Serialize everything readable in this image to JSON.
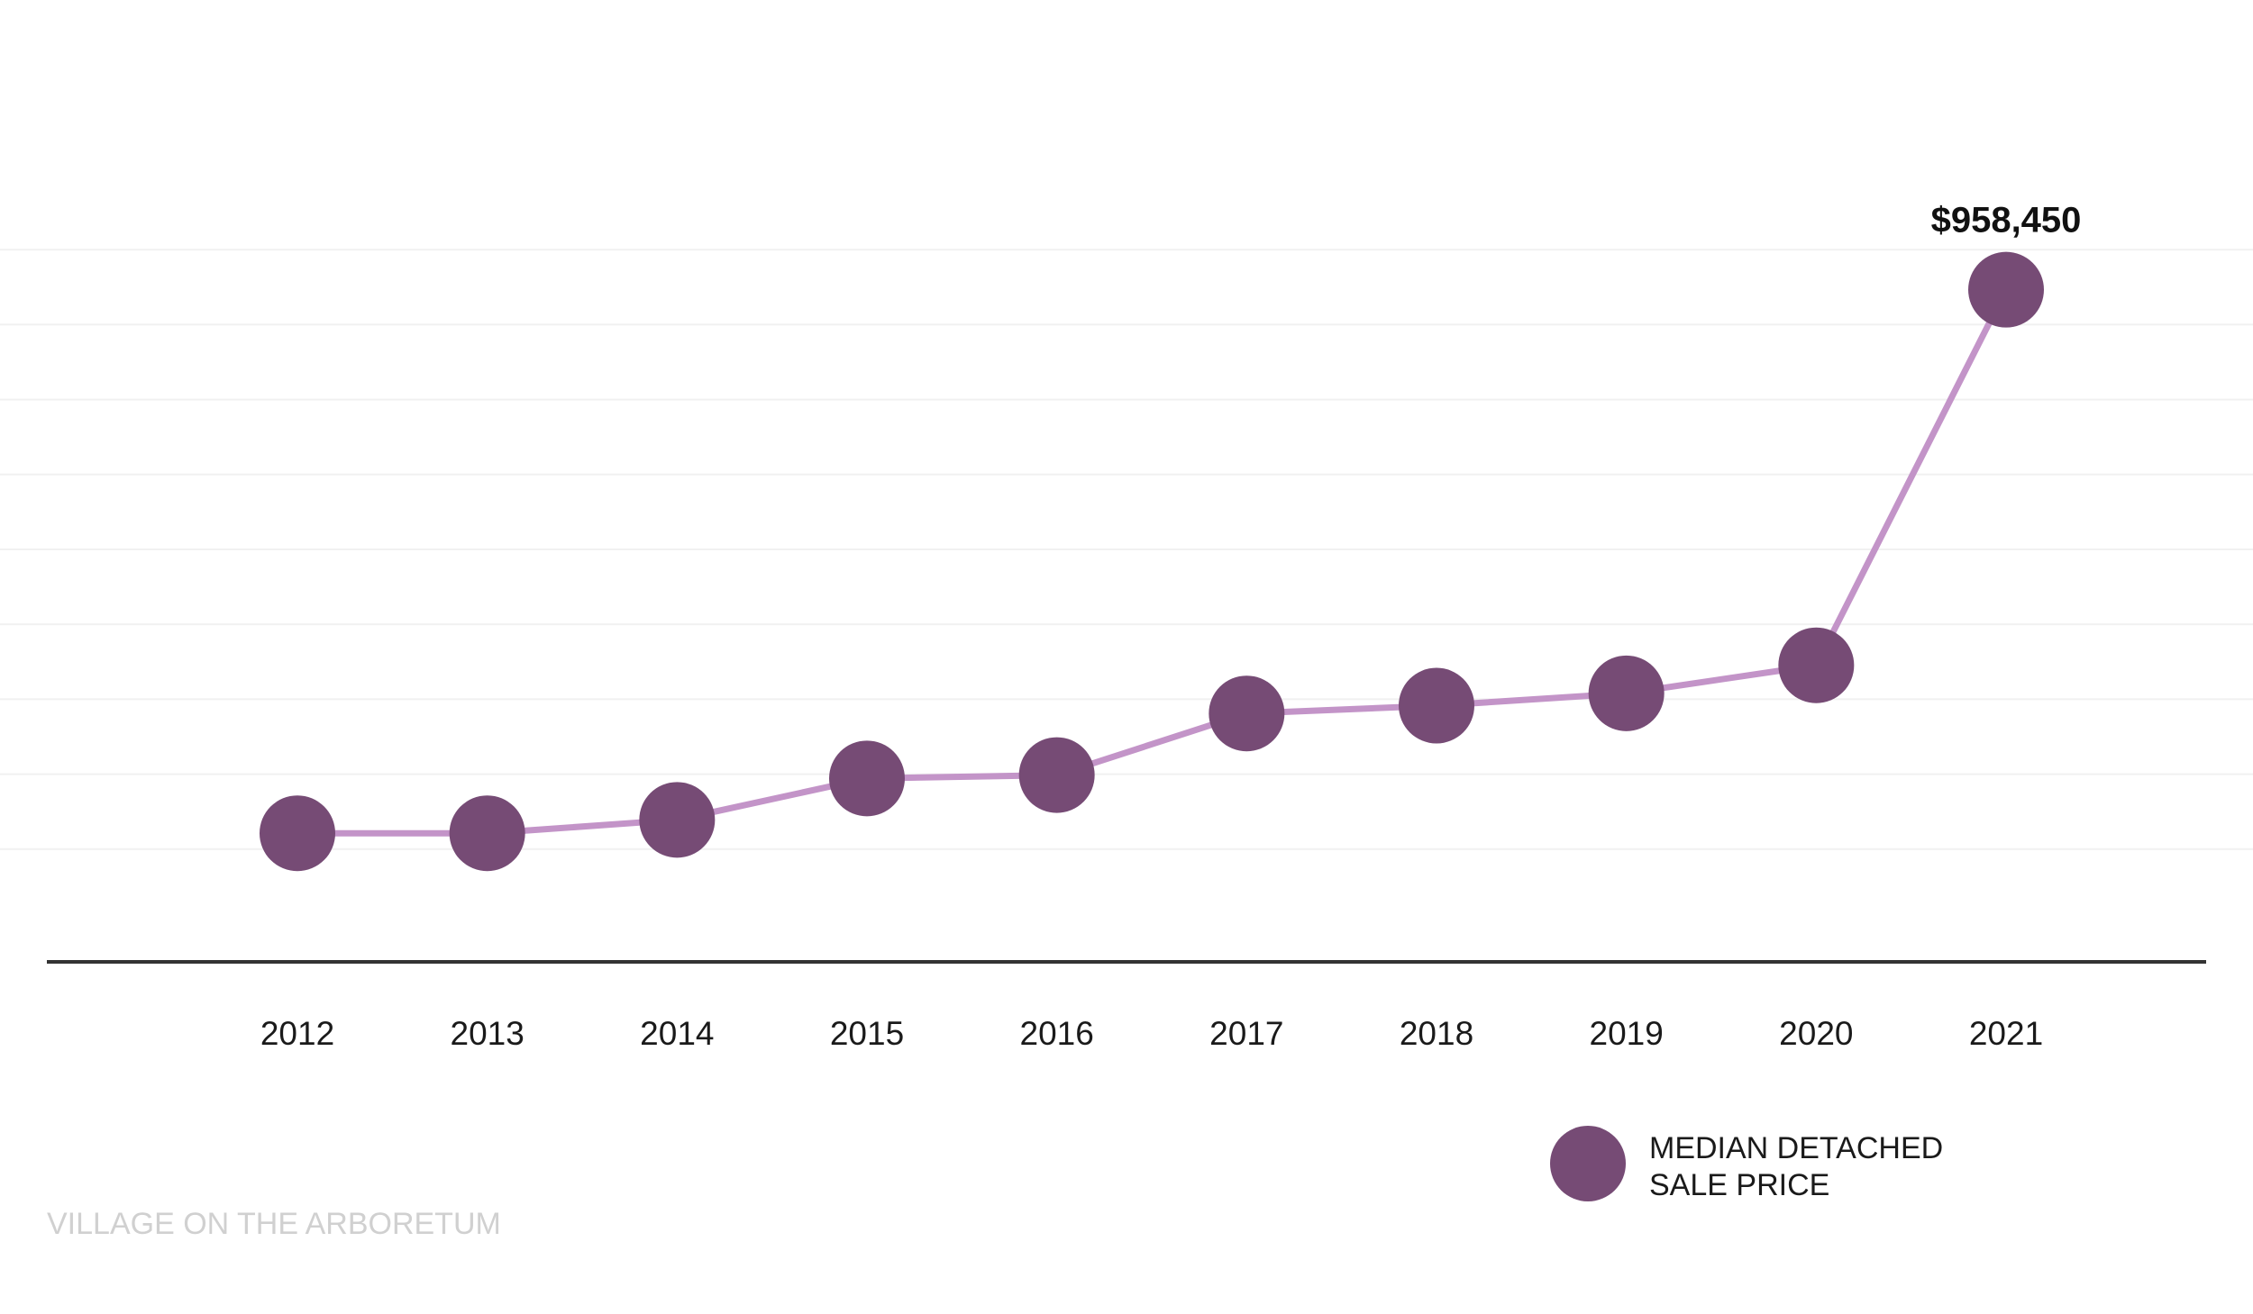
{
  "chart_data": {
    "type": "line",
    "categories": [
      "2012",
      "2013",
      "2014",
      "2015",
      "2016",
      "2017",
      "2018",
      "2019",
      "2020",
      "2021"
    ],
    "series": [
      {
        "name": "MEDIAN DETACHED SALE PRICE",
        "values": [
          473000,
          473000,
          485000,
          522000,
          525000,
          580000,
          587000,
          598000,
          623000,
          958450
        ]
      }
    ],
    "ylim": [
      0,
      1000000
    ],
    "grid": true,
    "legend_position": "bottom-right",
    "data_labels": [
      {
        "category": "2021",
        "text": "$958,450"
      }
    ],
    "legend": {
      "lines": [
        "MEDIAN DETACHED",
        "SALE PRICE"
      ]
    },
    "colors": {
      "marker": "#764b75",
      "line": "#c394c8",
      "grid": "#f1f1f1",
      "axis": "#333333"
    }
  },
  "watermark": "VILLAGE ON THE ARBORETUM"
}
